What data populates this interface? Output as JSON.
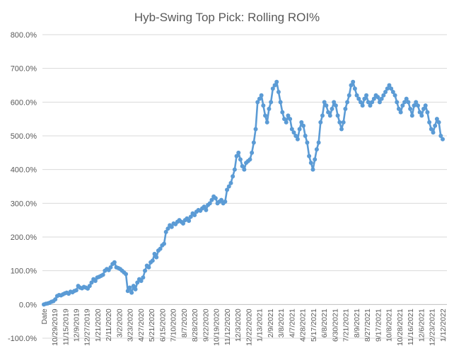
{
  "chart_data": {
    "type": "line",
    "title": "Hyb-Swing Top Pick: Rolling ROI%",
    "xlabel": "",
    "ylabel": "",
    "ylim": [
      -100,
      800
    ],
    "y_ticks": [
      "-100.0%",
      "0.0%",
      "100.0%",
      "200.0%",
      "300.0%",
      "400.0%",
      "500.0%",
      "600.0%",
      "700.0%",
      "800.0%"
    ],
    "x_ticks": [
      "Date",
      "10/29/2019",
      "11/15/2019",
      "12/9/2019",
      "12/27/2019",
      "1/21/2020",
      "2/11/2020",
      "3/2/2020",
      "3/23/2020",
      "4/27/2020",
      "5/21/2020",
      "6/15/2020",
      "7/10/2020",
      "8/7/2020",
      "8/28/2020",
      "9/22/2020",
      "10/19/2020",
      "11/12/2020",
      "12/3/2020",
      "12/22/2020",
      "1/13/2021",
      "2/9/2021",
      "3/8/2021",
      "4/7/2021",
      "4/28/2021",
      "5/17/2021",
      "6/8/2021",
      "6/30/2021",
      "7/21/2021",
      "8/9/2021",
      "8/27/2021",
      "9/17/2021",
      "10/8/2021",
      "10/28/2021",
      "11/16/2021",
      "12/6/2021",
      "12/23/2021",
      "1/12/2022"
    ],
    "grid": true,
    "legend": "none",
    "series_color": "#5b9bd5",
    "series": [
      {
        "values": [
          0,
          2,
          3,
          5,
          8,
          10,
          15,
          25,
          28,
          27,
          30,
          33,
          35,
          32,
          38,
          36,
          40,
          42,
          55,
          50,
          48,
          52,
          50,
          47,
          55,
          65,
          75,
          70,
          80,
          82,
          85,
          88,
          100,
          105,
          102,
          110,
          120,
          125,
          110,
          108,
          105,
          100,
          95,
          90,
          40,
          50,
          35,
          55,
          45,
          65,
          75,
          70,
          80,
          100,
          115,
          110,
          125,
          130,
          150,
          140,
          160,
          165,
          175,
          180,
          215,
          225,
          235,
          230,
          240,
          238,
          245,
          250,
          245,
          240,
          250,
          255,
          248,
          260,
          270,
          265,
          275,
          280,
          278,
          285,
          290,
          280,
          295,
          300,
          310,
          320,
          315,
          300,
          305,
          310,
          300,
          305,
          340,
          350,
          360,
          380,
          400,
          440,
          450,
          430,
          410,
          400,
          420,
          425,
          430,
          450,
          480,
          520,
          600,
          610,
          620,
          590,
          560,
          540,
          580,
          600,
          640,
          650,
          660,
          630,
          600,
          570,
          550,
          540,
          560,
          550,
          520,
          510,
          500,
          490,
          520,
          540,
          530,
          500,
          480,
          440,
          420,
          400,
          430,
          460,
          480,
          540,
          560,
          600,
          590,
          570,
          560,
          580,
          600,
          590,
          560,
          540,
          520,
          540,
          580,
          600,
          620,
          650,
          660,
          640,
          620,
          610,
          600,
          590,
          610,
          620,
          600,
          590,
          600,
          610,
          620,
          615,
          600,
          610,
          620,
          630,
          640,
          650,
          640,
          630,
          620,
          600,
          580,
          570,
          590,
          600,
          610,
          600,
          580,
          560,
          590,
          600,
          590,
          570,
          560,
          580,
          590,
          570,
          540,
          520,
          510,
          530,
          550,
          540,
          500,
          490
        ]
      }
    ]
  }
}
